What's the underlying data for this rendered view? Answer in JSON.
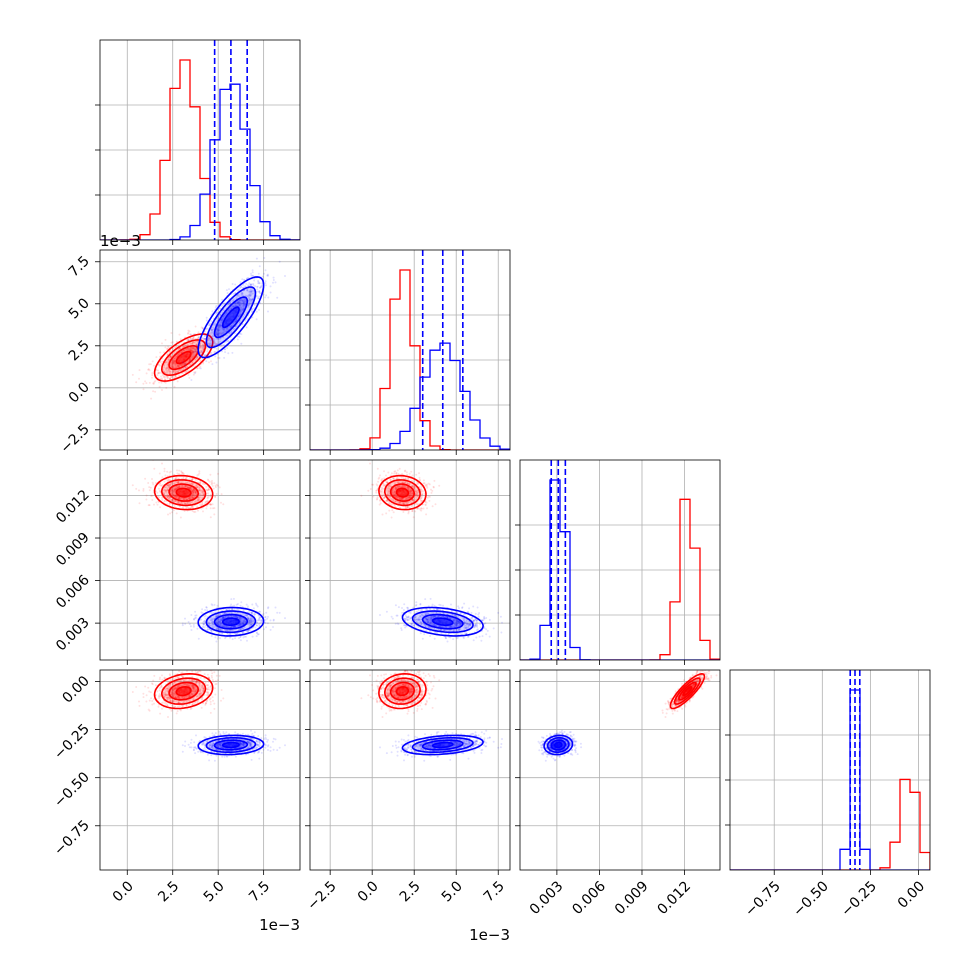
{
  "chart_data": {
    "type": "corner",
    "parameters": [
      {
        "label": "",
        "range": [
          -0.0015,
          0.0095
        ],
        "ticks": [
          0.0,
          2.5,
          5.0,
          7.5
        ],
        "tick_labels": [
          "0.0",
          "2.5",
          "5.0",
          "7.5"
        ],
        "tick_scale": 0.001,
        "offset_text": "1e−3"
      },
      {
        "label": "",
        "range": [
          -0.0037,
          0.0082
        ],
        "ticks": [
          -2.5,
          0.0,
          2.5,
          5.0,
          7.5
        ],
        "tick_labels": [
          "−2.5",
          "0.0",
          "2.5",
          "5.0",
          "7.5"
        ],
        "tick_scale": 0.001,
        "offset_text": "1e−3"
      },
      {
        "label": "",
        "range": [
          0.0004,
          0.0145
        ],
        "ticks": [
          0.003,
          0.006,
          0.009,
          0.012
        ],
        "tick_labels": [
          "0.003",
          "0.006",
          "0.009",
          "0.012"
        ],
        "tick_scale": 1
      },
      {
        "label": "",
        "range": [
          -0.98,
          0.06
        ],
        "ticks": [
          -0.75,
          -0.5,
          -0.25,
          0.0
        ],
        "tick_labels": [
          "−0.75",
          "−0.50",
          "−0.25",
          "0.00"
        ],
        "tick_scale": 1
      }
    ],
    "series": [
      {
        "color": "#ff0000",
        "mean": [
          0.0031,
          0.0018,
          0.0122,
          -0.05
        ],
        "std": [
          0.0008,
          0.0007,
          0.0006,
          0.045
        ],
        "corr": [
          [
            1,
            0.65,
            -0.1,
            0.2
          ],
          [
            0.65,
            1,
            -0.1,
            0.1
          ],
          [
            -0.1,
            -0.1,
            1,
            0.85
          ],
          [
            0.2,
            0.1,
            0.85,
            1
          ]
        ]
      },
      {
        "color": "#0000ff",
        "mean": [
          0.0057,
          0.0042,
          0.0031,
          -0.33
        ],
        "std": [
          0.0009,
          0.0012,
          0.0005,
          0.025
        ],
        "corr": [
          [
            1,
            0.8,
            0.05,
            0.1
          ],
          [
            0.8,
            1,
            -0.3,
            0.3
          ],
          [
            0.05,
            -0.3,
            1,
            0.1
          ],
          [
            0.1,
            0.3,
            0.1,
            1
          ]
        ]
      }
    ],
    "quantiles": [
      0.16,
      0.5,
      0.84
    ],
    "quantile_color": "#0000ff",
    "histogram_bins": 20,
    "grid": true
  }
}
